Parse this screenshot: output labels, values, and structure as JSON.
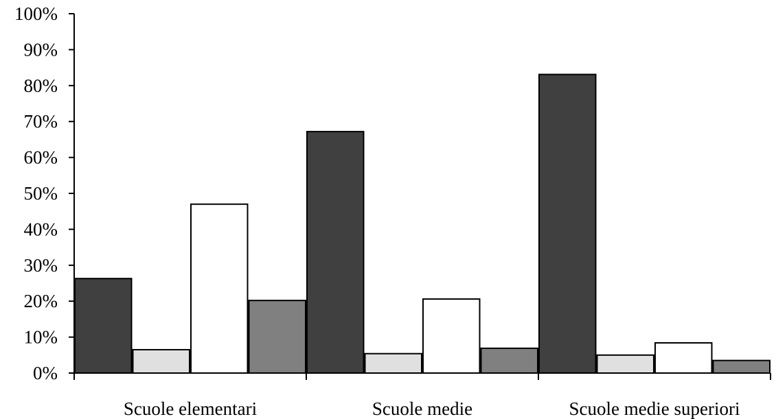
{
  "chart_data": {
    "type": "bar",
    "categories": [
      "Scuole elementari",
      "Scuole medie",
      "Scuole medie superiori"
    ],
    "series": [
      {
        "values": [
          26.3,
          67.2,
          83.1
        ],
        "color": "#404040"
      },
      {
        "values": [
          6.5,
          5.4,
          5.0
        ],
        "color": "#e0e0e0"
      },
      {
        "values": [
          47.0,
          20.6,
          8.4
        ],
        "color": "#ffffff"
      },
      {
        "values": [
          20.2,
          6.9,
          3.5
        ],
        "color": "#808080"
      }
    ],
    "ylim": [
      0,
      100
    ],
    "yticks": [
      "0%",
      "10%",
      "20%",
      "30%",
      "40%",
      "50%",
      "60%",
      "70%",
      "80%",
      "90%",
      "100%"
    ],
    "grid": false,
    "legend": "none"
  }
}
